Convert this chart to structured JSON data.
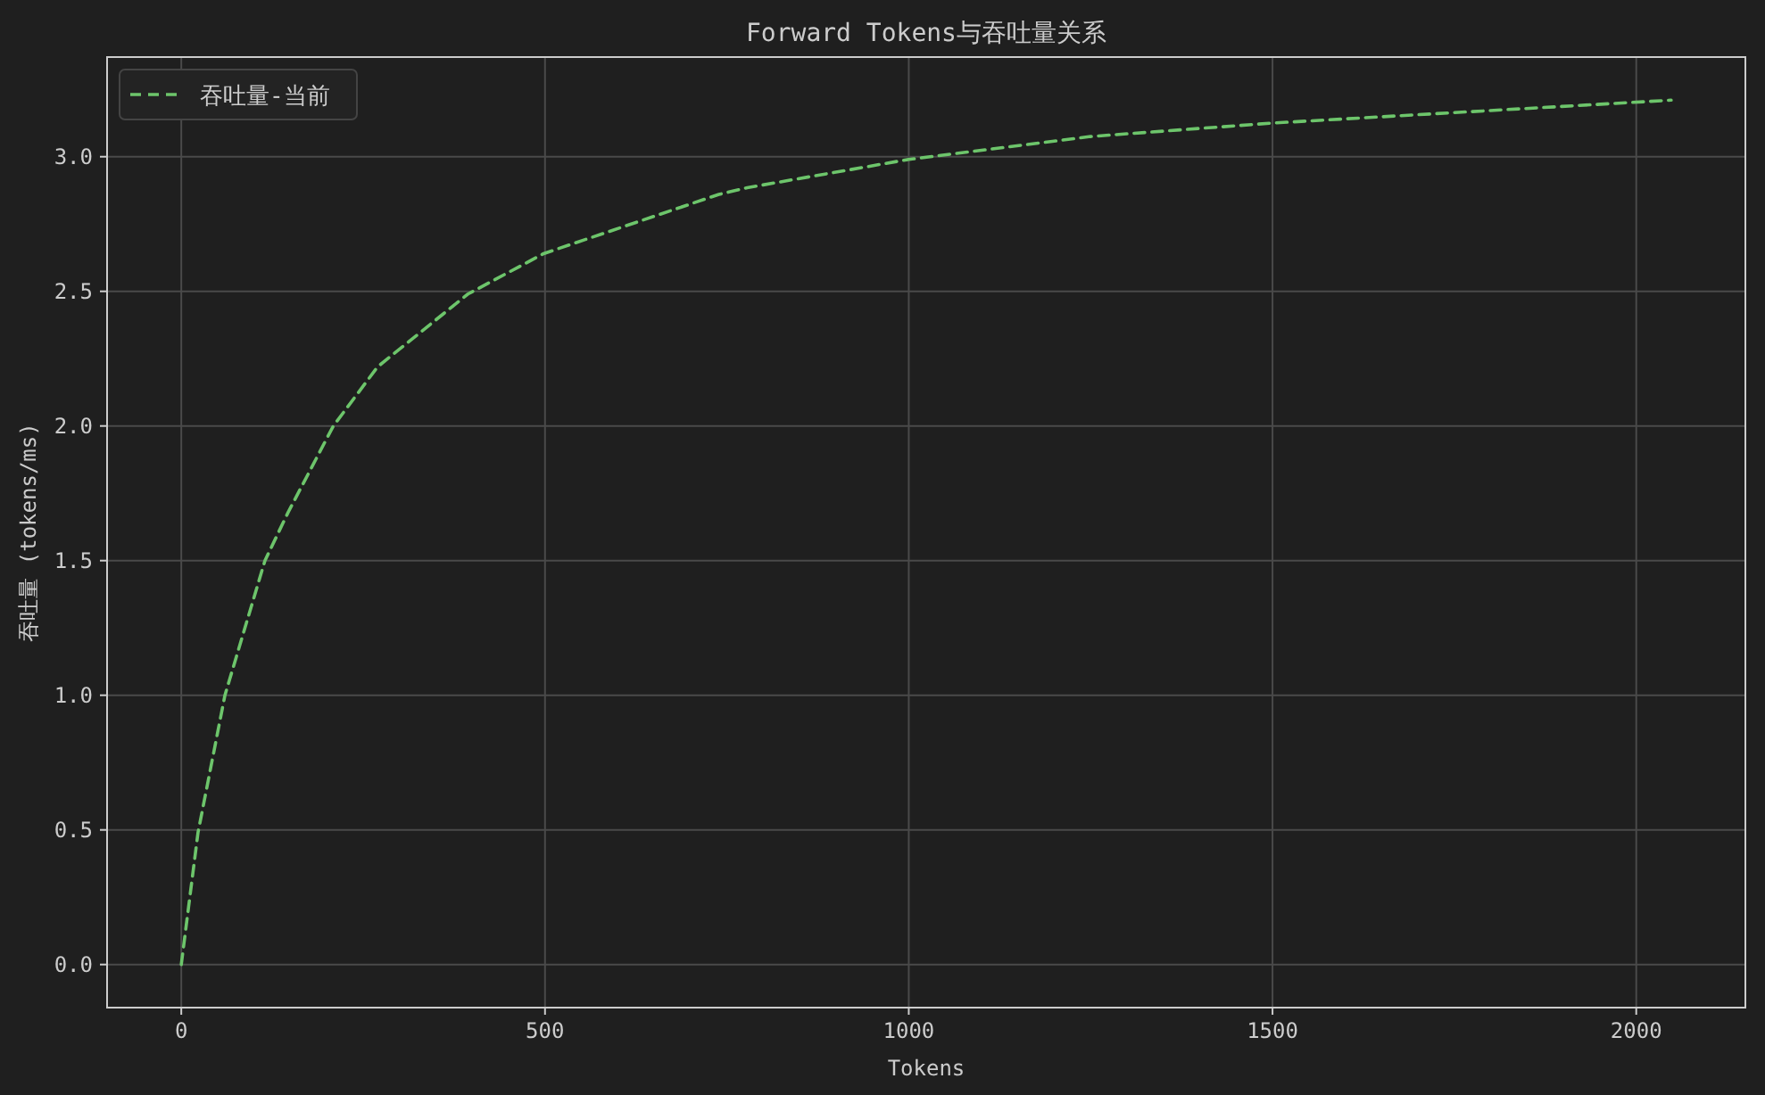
{
  "chart_data": {
    "type": "line",
    "title": "Forward Tokens与吞吐量关系",
    "xlabel": "Tokens",
    "ylabel": "吞吐量 (tokens/ms)",
    "series": [
      {
        "name": "吞吐量-当前",
        "color": "#6dc56b",
        "line_style": "dashed",
        "x": [
          0,
          23,
          60,
          115,
          147,
          209,
          270,
          394,
          498,
          739,
          778,
          1000,
          1250,
          1500,
          2048
        ],
        "values": [
          0,
          0.49,
          1.0,
          1.5,
          1.68,
          2.0,
          2.22,
          2.49,
          2.64,
          2.86,
          2.885,
          2.99,
          3.075,
          3.125,
          3.21
        ]
      }
    ],
    "xlim": [
      -102,
      2150
    ],
    "ylim": [
      -0.16,
      3.37
    ],
    "xticks": [
      0,
      500,
      1000,
      1500,
      2000
    ],
    "yticks": [
      {
        "value": 0,
        "label": "0.0"
      },
      {
        "value": 0.5,
        "label": "0.5"
      },
      {
        "value": 1,
        "label": "1.0"
      },
      {
        "value": 1.5,
        "label": "1.5"
      },
      {
        "value": 2,
        "label": "2.0"
      },
      {
        "value": 2.5,
        "label": "2.5"
      },
      {
        "value": 3,
        "label": "3.0"
      }
    ],
    "grid": true,
    "legend": "top left"
  }
}
